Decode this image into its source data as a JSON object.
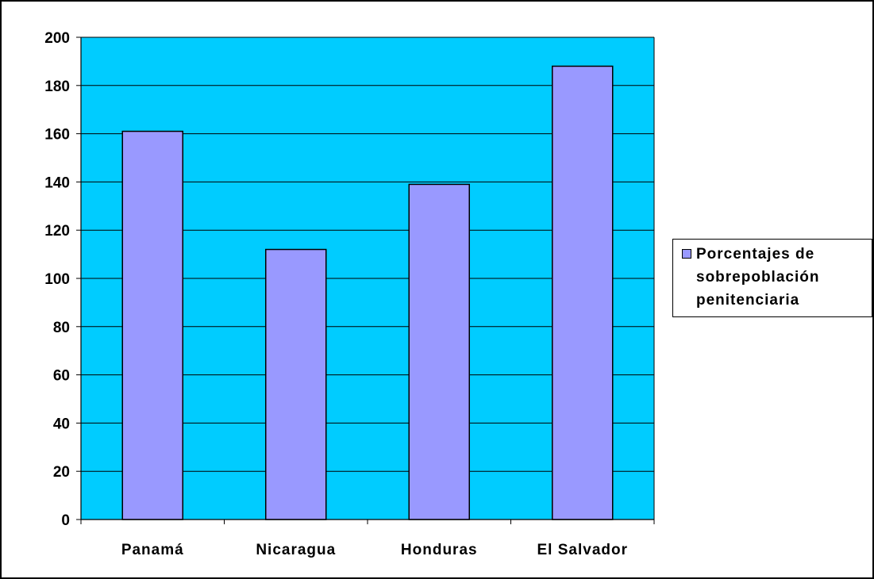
{
  "chart_data": {
    "type": "bar",
    "categories": [
      "Panamá",
      "Nicaragua",
      "Honduras",
      "El Salvador"
    ],
    "series": [
      {
        "name": "Porcentajes de sobrepoblación penitenciaria",
        "values": [
          161,
          112,
          139,
          188
        ]
      }
    ],
    "ylim": [
      0,
      200
    ],
    "yticks": [
      "0",
      "20",
      "40",
      "60",
      "80",
      "100",
      "120",
      "140",
      "160",
      "180",
      "200"
    ],
    "grid": true,
    "legend_position": "right",
    "colors": {
      "plot_background": "#00CCFF",
      "bar_fill": "#9999FF",
      "bar_stroke": "#000000",
      "gridline": "#000000"
    }
  }
}
